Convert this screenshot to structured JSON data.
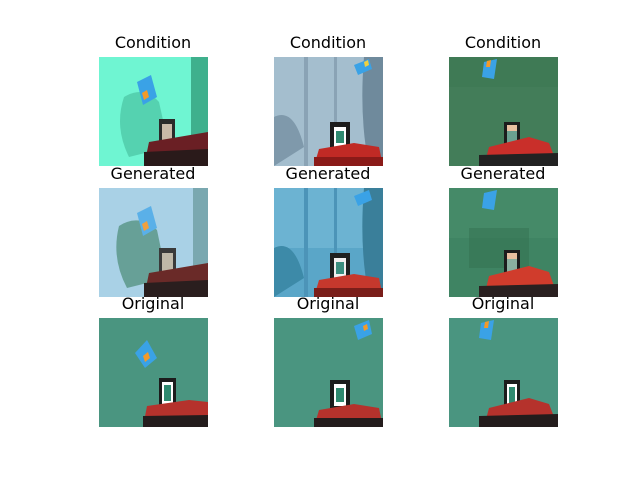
{
  "rows": [
    {
      "label": "Condition"
    },
    {
      "label": "Generated"
    },
    {
      "label": "Original"
    }
  ],
  "colors": {
    "condition_bg_1": "#6ff5d2",
    "condition_bg_2": "#9fb8c9",
    "condition_bg_3": "#3f7a55",
    "generated_bg_1": "#9cc6e0",
    "generated_bg_2": "#5aa6c8",
    "generated_bg_3": "#3f8463",
    "original_bg": "#4a9580",
    "floor_dark": "#241c1c",
    "floor_red": "#c13a35",
    "device_dark": "#1c1c1c",
    "screen": "#ffffff",
    "screen_inner": "#2f8a70",
    "marker_blue": "#3aa2e6",
    "marker_orange": "#f39a2a"
  }
}
